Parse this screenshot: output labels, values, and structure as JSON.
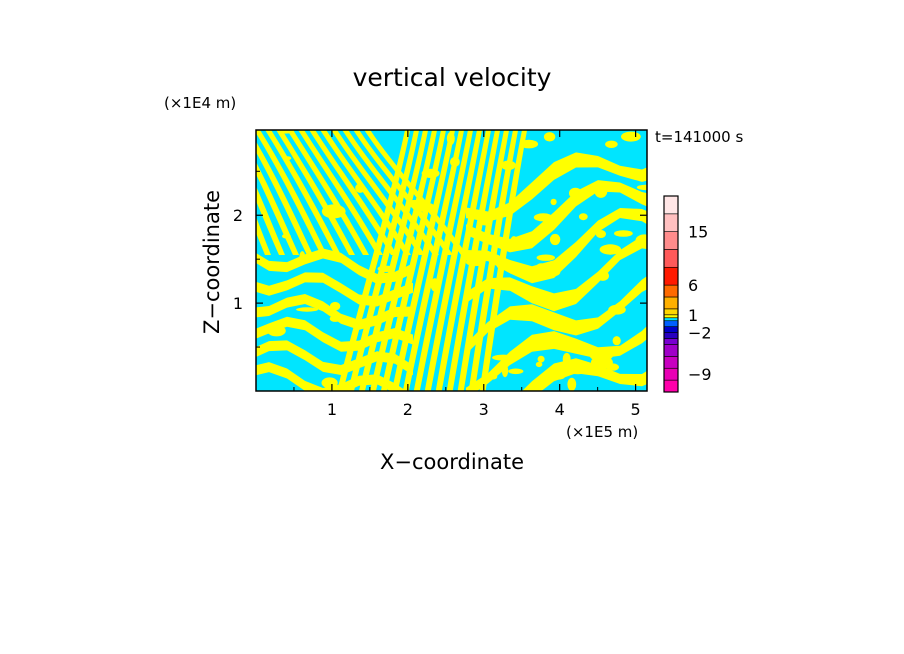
{
  "chart_data": {
    "type": "heatmap",
    "title": "vertical velocity",
    "xlabel": "X−coordinate",
    "ylabel": "Z−coordinate",
    "x_unit": "(×1E5 m)",
    "y_unit": "(×1E4 m)",
    "time_label": "t=141000 s",
    "xlim": [
      0,
      5.15
    ],
    "ylim": [
      0,
      2.97
    ],
    "x_ticks": [
      1,
      2,
      3,
      4,
      5
    ],
    "y_ticks": [
      1,
      2
    ],
    "x_tick_labels": [
      "1",
      "2",
      "3",
      "4",
      "5"
    ],
    "y_tick_labels": [
      "1",
      "2"
    ],
    "fill_colors": {
      "negative": "#00e5ff",
      "positive": "#ffff00"
    },
    "colorbar": {
      "levels": [
        {
          "value": -12,
          "color": "#ff00aa"
        },
        {
          "value": -10,
          "color": "#e800b4"
        },
        {
          "value": -8,
          "color": "#c800c0"
        },
        {
          "value": -6,
          "color": "#a000c8"
        },
        {
          "value": -4,
          "color": "#7800d0"
        },
        {
          "value": -3,
          "color": "#2800c0"
        },
        {
          "value": -2,
          "color": "#0000c8"
        },
        {
          "value": -1,
          "color": "#0060ff"
        },
        {
          "value": 0,
          "color": "#00e5ff"
        },
        {
          "value": 0.5,
          "color": "#ffff00"
        },
        {
          "value": 1,
          "color": "#ffd700"
        },
        {
          "value": 2,
          "color": "#ffb000"
        },
        {
          "value": 4,
          "color": "#ff6a00"
        },
        {
          "value": 6,
          "color": "#ff1a00"
        },
        {
          "value": 9,
          "color": "#ff5a5a"
        },
        {
          "value": 12,
          "color": "#ff8c8c"
        },
        {
          "value": 15,
          "color": "#ffc0c0"
        },
        {
          "value": 18,
          "color": "#ffe6e6"
        },
        {
          "value": 21,
          "color": "#ffeeee"
        }
      ],
      "tick_labels": [
        "15",
        "6",
        "1",
        "−2",
        "−9"
      ],
      "tick_values": [
        15,
        6,
        1,
        -2,
        -9
      ]
    }
  }
}
